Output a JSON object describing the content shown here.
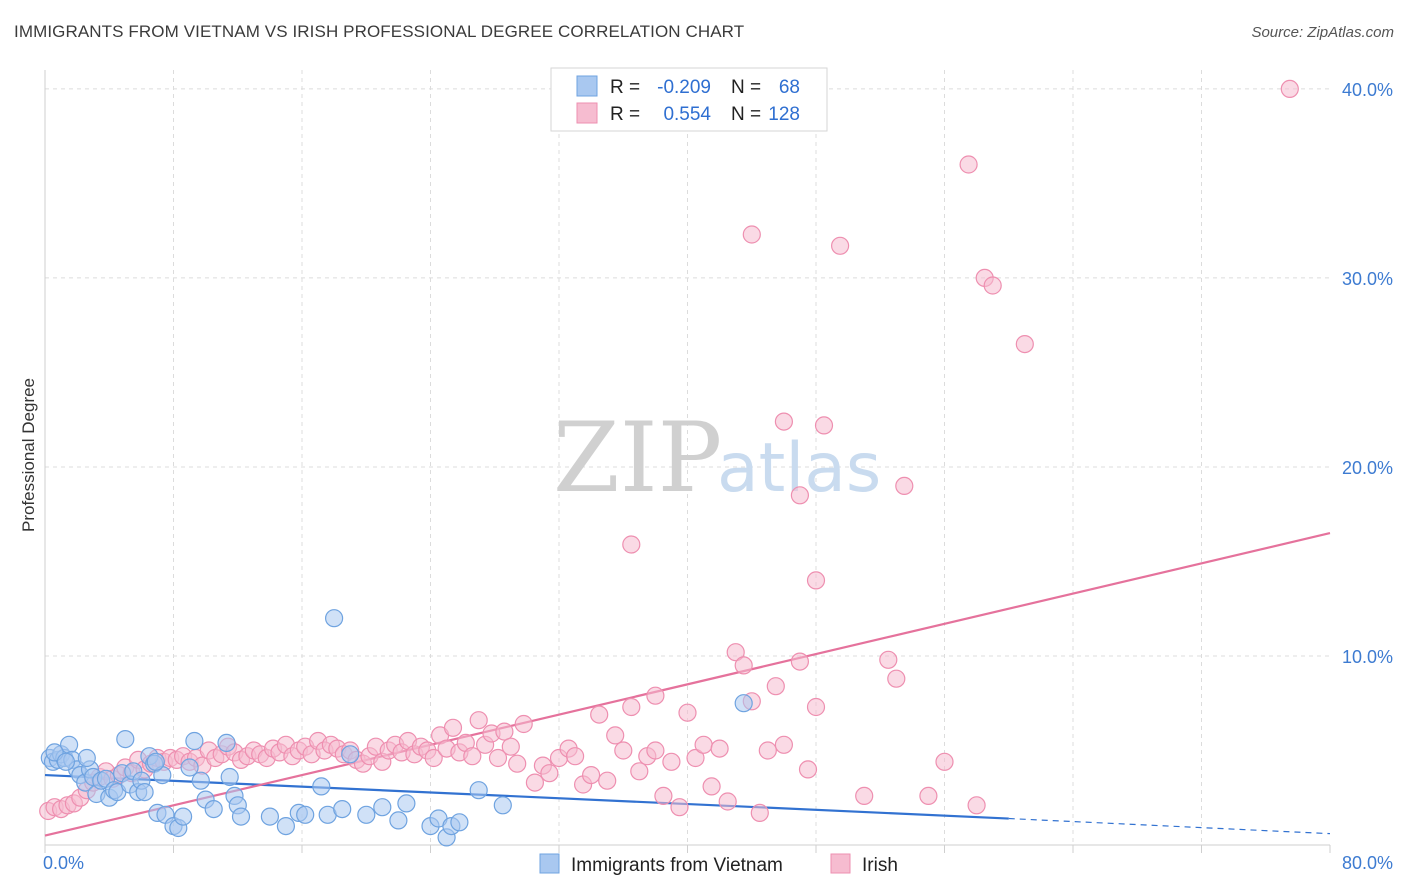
{
  "title": "IMMIGRANTS FROM VIETNAM VS IRISH PROFESSIONAL DEGREE CORRELATION CHART",
  "source": "Source: ZipAtlas.com",
  "watermark": {
    "zip": "ZIP",
    "atlas": "atlas"
  },
  "colors": {
    "blue": "#a9c8f0",
    "blue_stroke": "#6fa3e0",
    "blue_line": "#3272d1",
    "pink": "#f6bcd0",
    "pink_stroke": "#ee8fb0",
    "pink_line": "#e5729c",
    "tick_text": "#3d7bd1",
    "grid": "#dcdcdc"
  },
  "legend": {
    "rows": [
      {
        "r_label": "R =",
        "r_value": "-0.209",
        "n_label": "N =",
        "n_value": "68"
      },
      {
        "r_label": "R =",
        "r_value": "0.554",
        "n_label": "N =",
        "n_value": "128"
      }
    ]
  },
  "chart_data": {
    "type": "scatter",
    "title": "IMMIGRANTS FROM VIETNAM VS IRISH PROFESSIONAL DEGREE CORRELATION CHART",
    "xlabel": "",
    "ylabel": "Professional Degree",
    "xlim": [
      0,
      80
    ],
    "ylim": [
      0,
      41
    ],
    "x_tick_labels": [
      "0.0%",
      "80.0%"
    ],
    "y_ticks": [
      10,
      20,
      30,
      40
    ],
    "y_tick_labels": [
      "10.0%",
      "20.0%",
      "30.0%",
      "40.0%"
    ],
    "grid": true,
    "legend_position": "top-center",
    "series": [
      {
        "name": "Immigrants from Vietnam",
        "color": "#a9c8f0",
        "trend": {
          "x": [
            0,
            60
          ],
          "y": [
            3.7,
            1.4
          ],
          "dashed_to": [
            80,
            0.6
          ]
        },
        "points": [
          [
            0.3,
            4.6
          ],
          [
            0.5,
            4.4
          ],
          [
            0.8,
            4.5
          ],
          [
            1.0,
            4.8
          ],
          [
            1.2,
            4.6
          ],
          [
            1.5,
            5.3
          ],
          [
            1.7,
            4.5
          ],
          [
            2.0,
            4.0
          ],
          [
            2.2,
            3.7
          ],
          [
            2.5,
            3.3
          ],
          [
            2.8,
            4.0
          ],
          [
            3.0,
            3.6
          ],
          [
            3.2,
            2.7
          ],
          [
            3.5,
            3.4
          ],
          [
            3.8,
            3.5
          ],
          [
            4.0,
            2.5
          ],
          [
            4.3,
            2.9
          ],
          [
            4.5,
            2.8
          ],
          [
            4.8,
            3.8
          ],
          [
            5.0,
            5.6
          ],
          [
            5.3,
            3.2
          ],
          [
            5.5,
            3.9
          ],
          [
            5.8,
            2.8
          ],
          [
            6.0,
            3.4
          ],
          [
            6.2,
            2.8
          ],
          [
            6.5,
            4.7
          ],
          [
            6.8,
            4.3
          ],
          [
            7.0,
            1.7
          ],
          [
            7.3,
            3.7
          ],
          [
            7.5,
            1.6
          ],
          [
            8.0,
            1.0
          ],
          [
            8.3,
            0.9
          ],
          [
            8.6,
            1.5
          ],
          [
            9.0,
            4.1
          ],
          [
            9.3,
            5.5
          ],
          [
            10.0,
            2.4
          ],
          [
            10.5,
            1.9
          ],
          [
            11.3,
            5.4
          ],
          [
            11.5,
            3.6
          ],
          [
            11.8,
            2.6
          ],
          [
            12.0,
            2.1
          ],
          [
            12.2,
            1.5
          ],
          [
            14.0,
            1.5
          ],
          [
            15.0,
            1.0
          ],
          [
            15.8,
            1.7
          ],
          [
            16.2,
            1.6
          ],
          [
            17.2,
            3.1
          ],
          [
            17.6,
            1.6
          ],
          [
            18.5,
            1.9
          ],
          [
            19.0,
            4.8
          ],
          [
            20.0,
            1.6
          ],
          [
            21.0,
            2.0
          ],
          [
            22.0,
            1.3
          ],
          [
            22.5,
            2.2
          ],
          [
            24.0,
            1.0
          ],
          [
            24.5,
            1.4
          ],
          [
            25.0,
            0.4
          ],
          [
            25.3,
            1.0
          ],
          [
            25.8,
            1.2
          ],
          [
            27.0,
            2.9
          ],
          [
            28.5,
            2.1
          ],
          [
            18.0,
            12.0
          ],
          [
            43.5,
            7.5
          ],
          [
            0.6,
            4.9
          ],
          [
            1.3,
            4.4
          ],
          [
            2.6,
            4.6
          ],
          [
            6.9,
            4.4
          ],
          [
            9.7,
            3.4
          ]
        ]
      },
      {
        "name": "Irish",
        "color": "#f6bcd0",
        "trend": {
          "x": [
            0,
            80
          ],
          "y": [
            0.5,
            16.5
          ]
        },
        "points": [
          [
            0.2,
            1.8
          ],
          [
            0.6,
            2.0
          ],
          [
            1.0,
            1.9
          ],
          [
            1.4,
            2.1
          ],
          [
            1.8,
            2.2
          ],
          [
            2.2,
            2.5
          ],
          [
            2.6,
            2.9
          ],
          [
            3.0,
            3.3
          ],
          [
            3.4,
            3.6
          ],
          [
            3.8,
            3.9
          ],
          [
            4.2,
            3.5
          ],
          [
            4.6,
            3.7
          ],
          [
            5.0,
            4.1
          ],
          [
            5.4,
            3.8
          ],
          [
            5.8,
            4.5
          ],
          [
            6.2,
            4.0
          ],
          [
            6.6,
            4.3
          ],
          [
            7.0,
            4.6
          ],
          [
            7.4,
            4.4
          ],
          [
            7.8,
            4.6
          ],
          [
            8.2,
            4.5
          ],
          [
            8.6,
            4.7
          ],
          [
            9.0,
            4.4
          ],
          [
            9.4,
            4.6
          ],
          [
            9.8,
            4.2
          ],
          [
            10.2,
            5.0
          ],
          [
            10.6,
            4.6
          ],
          [
            11.0,
            4.8
          ],
          [
            11.4,
            5.2
          ],
          [
            11.8,
            4.9
          ],
          [
            12.2,
            4.5
          ],
          [
            12.6,
            4.7
          ],
          [
            13.0,
            5.0
          ],
          [
            13.4,
            4.8
          ],
          [
            13.8,
            4.6
          ],
          [
            14.2,
            5.1
          ],
          [
            14.6,
            4.9
          ],
          [
            15.0,
            5.3
          ],
          [
            15.4,
            4.7
          ],
          [
            15.8,
            5.0
          ],
          [
            16.2,
            5.2
          ],
          [
            16.6,
            4.8
          ],
          [
            17.0,
            5.5
          ],
          [
            17.4,
            5.0
          ],
          [
            17.8,
            5.3
          ],
          [
            18.2,
            5.1
          ],
          [
            18.6,
            4.8
          ],
          [
            19.0,
            5.0
          ],
          [
            19.4,
            4.5
          ],
          [
            19.8,
            4.3
          ],
          [
            20.2,
            4.7
          ],
          [
            20.6,
            5.2
          ],
          [
            21.0,
            4.4
          ],
          [
            21.4,
            5.0
          ],
          [
            21.8,
            5.3
          ],
          [
            22.2,
            4.9
          ],
          [
            22.6,
            5.5
          ],
          [
            23.0,
            4.8
          ],
          [
            23.4,
            5.2
          ],
          [
            23.8,
            5.0
          ],
          [
            24.2,
            4.6
          ],
          [
            24.6,
            5.8
          ],
          [
            25.0,
            5.1
          ],
          [
            25.4,
            6.2
          ],
          [
            25.8,
            4.9
          ],
          [
            26.2,
            5.4
          ],
          [
            26.6,
            4.7
          ],
          [
            27.0,
            6.6
          ],
          [
            27.4,
            5.3
          ],
          [
            27.8,
            5.9
          ],
          [
            28.2,
            4.6
          ],
          [
            28.6,
            6.0
          ],
          [
            29.0,
            5.2
          ],
          [
            29.4,
            4.3
          ],
          [
            29.8,
            6.4
          ],
          [
            30.5,
            3.3
          ],
          [
            31.0,
            4.2
          ],
          [
            31.4,
            3.8
          ],
          [
            32.0,
            4.6
          ],
          [
            32.6,
            5.1
          ],
          [
            33.0,
            4.7
          ],
          [
            33.5,
            3.2
          ],
          [
            34.0,
            3.7
          ],
          [
            34.5,
            6.9
          ],
          [
            35.0,
            3.4
          ],
          [
            35.5,
            5.8
          ],
          [
            36.0,
            5.0
          ],
          [
            36.5,
            7.3
          ],
          [
            37.0,
            3.9
          ],
          [
            37.5,
            4.7
          ],
          [
            38.0,
            5.0
          ],
          [
            38.5,
            2.6
          ],
          [
            39.0,
            4.4
          ],
          [
            39.5,
            2.0
          ],
          [
            40.0,
            7.0
          ],
          [
            40.5,
            4.6
          ],
          [
            41.0,
            5.3
          ],
          [
            41.5,
            3.1
          ],
          [
            42.0,
            5.1
          ],
          [
            42.5,
            2.3
          ],
          [
            43.0,
            10.2
          ],
          [
            43.5,
            9.5
          ],
          [
            44.0,
            7.6
          ],
          [
            44.5,
            1.7
          ],
          [
            45.0,
            5.0
          ],
          [
            45.5,
            8.4
          ],
          [
            46.0,
            5.3
          ],
          [
            47.0,
            9.7
          ],
          [
            47.5,
            4.0
          ],
          [
            48.0,
            7.3
          ],
          [
            51.0,
            2.6
          ],
          [
            52.5,
            9.8
          ],
          [
            53.0,
            8.8
          ],
          [
            55.0,
            2.6
          ],
          [
            56.0,
            4.4
          ],
          [
            58.0,
            2.1
          ],
          [
            38.0,
            7.9
          ],
          [
            36.5,
            15.9
          ],
          [
            47.0,
            18.5
          ],
          [
            44.0,
            32.3
          ],
          [
            53.5,
            19.0
          ],
          [
            46.0,
            22.4
          ],
          [
            57.5,
            36.0
          ],
          [
            58.5,
            30.0
          ],
          [
            59.0,
            29.6
          ],
          [
            61.0,
            26.5
          ],
          [
            49.5,
            31.7
          ],
          [
            48.5,
            22.2
          ],
          [
            48.0,
            14.0
          ],
          [
            77.5,
            40.0
          ]
        ]
      }
    ]
  },
  "bottom_legend": [
    {
      "label": "Immigrants from Vietnam"
    },
    {
      "label": "Irish"
    }
  ]
}
